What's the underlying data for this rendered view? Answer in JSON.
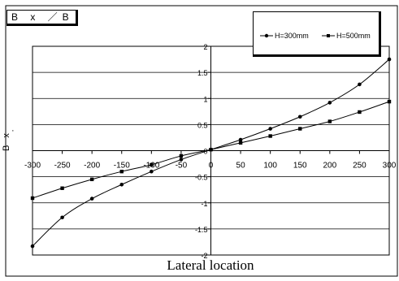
{
  "chart_data": {
    "type": "line",
    "title": "B x ／B",
    "xlabel": "Lateral location",
    "ylabel": "B x",
    "xlim": [
      -300,
      300
    ],
    "ylim": [
      -2,
      2
    ],
    "x_ticks": [
      "-300",
      "-250",
      "-200",
      "-150",
      "-100",
      "-50",
      "0",
      "50",
      "100",
      "150",
      "200",
      "250",
      "300"
    ],
    "y_ticks": [
      "2",
      "1.5",
      "1",
      "0.5",
      "0",
      "-0.5",
      "-1",
      "-1.5",
      "-2"
    ],
    "grid": "horizontal",
    "legend_placement": "top-right",
    "series": [
      {
        "name": "H=300mm",
        "marker": "circle",
        "x": [
          -300,
          -250,
          -200,
          -150,
          -100,
          -50,
          0,
          50,
          100,
          150,
          200,
          250,
          300
        ],
        "values": [
          -1.83,
          -1.28,
          -0.92,
          -0.65,
          -0.4,
          -0.17,
          0.02,
          0.21,
          0.42,
          0.65,
          0.92,
          1.27,
          1.75
        ]
      },
      {
        "name": "H=500mm",
        "marker": "square",
        "x": [
          -300,
          -250,
          -200,
          -150,
          -100,
          -50,
          0,
          50,
          100,
          150,
          200,
          250,
          300
        ],
        "values": [
          -0.91,
          -0.72,
          -0.55,
          -0.4,
          -0.27,
          -0.1,
          0.02,
          0.15,
          0.28,
          0.42,
          0.56,
          0.74,
          0.94
        ]
      }
    ]
  }
}
